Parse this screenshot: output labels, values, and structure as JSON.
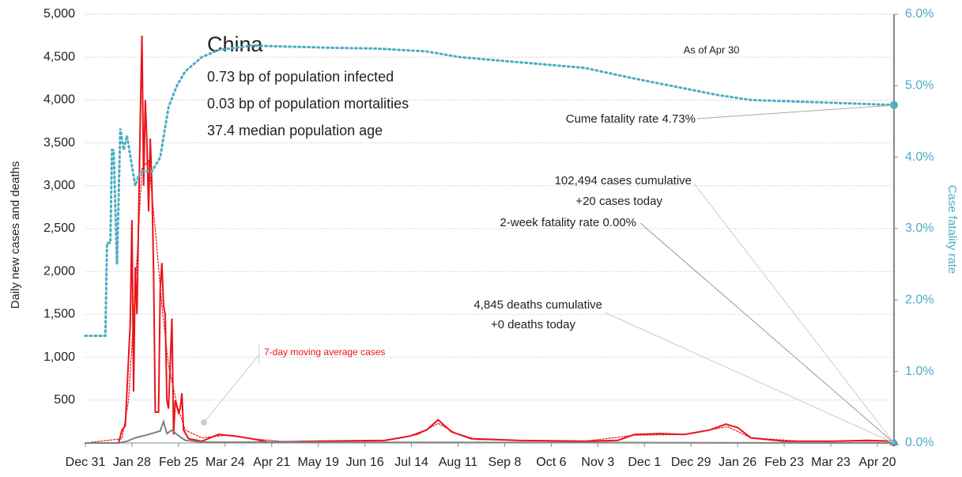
{
  "chart_data": {
    "type": "line",
    "title": "China",
    "subtitle": [
      "0.73 bp of population infected",
      "0.03 bp of population mortalities",
      "37.4 median population age"
    ],
    "y_label": "Daily new cases and deaths",
    "y2_label": "Case fatality rate",
    "annotations": {
      "as_of": "As of Apr 30",
      "cume": "Cume fatality rate 4.73%",
      "cases": [
        "102,494 cases cumulative",
        "+20 cases today"
      ],
      "twoweek": "2-week fatality rate 0.00%",
      "deaths": [
        "4,845 deaths cumulative",
        "+0 deaths today"
      ]
    },
    "xlim": [
      0,
      486
    ],
    "xticks": [
      {
        "value": 0,
        "label": "Dec 31"
      },
      {
        "value": 28,
        "label": "Jan 28"
      },
      {
        "value": 56,
        "label": "Feb 25"
      },
      {
        "value": 84,
        "label": "Mar 24"
      },
      {
        "value": 112,
        "label": "Apr 21"
      },
      {
        "value": 140,
        "label": "May 19"
      },
      {
        "value": 168,
        "label": "Jun 16"
      },
      {
        "value": 196,
        "label": "Jul 14"
      },
      {
        "value": 224,
        "label": "Aug 11"
      },
      {
        "value": 252,
        "label": "Sep 8"
      },
      {
        "value": 280,
        "label": "Oct 6"
      },
      {
        "value": 308,
        "label": "Nov 3"
      },
      {
        "value": 336,
        "label": "Dec 1"
      },
      {
        "value": 364,
        "label": "Dec 29"
      },
      {
        "value": 392,
        "label": "Jan 26"
      },
      {
        "value": 420,
        "label": "Feb 23"
      },
      {
        "value": 448,
        "label": "Mar 23"
      },
      {
        "value": 476,
        "label": "Apr 20"
      }
    ],
    "ylim": [
      0,
      5000
    ],
    "yticks": [
      500,
      {
        "value": 1000,
        "label": "1,000"
      },
      {
        "value": 1500,
        "label": "1,500"
      },
      {
        "value": 2000,
        "label": "2,000"
      },
      {
        "value": 2500,
        "label": "2,500"
      },
      {
        "value": 3000,
        "label": "3,000"
      },
      {
        "value": 3500,
        "label": "3,500"
      },
      {
        "value": 4000,
        "label": "4,000"
      },
      {
        "value": 4500,
        "label": "4,500"
      },
      {
        "value": 5000,
        "label": "5,000"
      }
    ],
    "y2lim": [
      0,
      6
    ],
    "y2ticks": [
      {
        "value": 0,
        "label": "0.0%"
      },
      {
        "value": 1,
        "label": "1.0%"
      },
      {
        "value": 2,
        "label": "2.0%"
      },
      {
        "value": 3,
        "label": "3.0%"
      },
      {
        "value": 4,
        "label": "4.0%"
      },
      {
        "value": 5,
        "label": "5.0%"
      },
      {
        "value": 6,
        "label": "6.0%"
      }
    ],
    "grid": true,
    "series": [
      {
        "color": "#e8141a",
        "style": "solid",
        "x": [
          0,
          20,
          22,
          24,
          26,
          27,
          28,
          29,
          30,
          31,
          33,
          34,
          35,
          36,
          37,
          38,
          39,
          40,
          41,
          42,
          44,
          45,
          46,
          47,
          48,
          49,
          50,
          52,
          53,
          54,
          56,
          57,
          58,
          59,
          62,
          70,
          80,
          90,
          100,
          110,
          140,
          180,
          195,
          205,
          212,
          220,
          232,
          260,
          300,
          320,
          330,
          345,
          360,
          375,
          385,
          392,
          400,
          420,
          450,
          470,
          486
        ],
        "values": [
          0,
          0,
          150,
          200,
          1000,
          1400,
          2600,
          600,
          2050,
          1500,
          3800,
          4750,
          3000,
          4000,
          3500,
          2700,
          3550,
          3000,
          2000,
          360,
          360,
          1800,
          2100,
          1600,
          1500,
          500,
          400,
          1450,
          100,
          500,
          350,
          400,
          580,
          150,
          50,
          20,
          100,
          80,
          50,
          10,
          20,
          30,
          80,
          150,
          270,
          130,
          50,
          30,
          20,
          30,
          100,
          110,
          100,
          150,
          220,
          180,
          60,
          20,
          20,
          30,
          20
        ]
      },
      {
        "name": "7-day moving average cases",
        "color": "#e8141a",
        "style": "dotted",
        "x": [
          0,
          22,
          26,
          30,
          34,
          38,
          42,
          46,
          50,
          55,
          60,
          70,
          85,
          100,
          120,
          180,
          200,
          212,
          222,
          235,
          300,
          330,
          360,
          386,
          400,
          430,
          486
        ],
        "values": [
          0,
          50,
          500,
          1800,
          3200,
          3300,
          2500,
          1600,
          900,
          450,
          150,
          60,
          90,
          50,
          15,
          30,
          100,
          230,
          120,
          40,
          20,
          90,
          100,
          190,
          60,
          20,
          20
        ]
      },
      {
        "color": "#808080",
        "style": "solid",
        "x": [
          0,
          20,
          25,
          30,
          38,
          45,
          47,
          49,
          52,
          55,
          60,
          70,
          486
        ],
        "values": [
          0,
          0,
          20,
          60,
          100,
          140,
          250,
          110,
          150,
          100,
          30,
          10,
          0
        ]
      },
      {
        "color": "#4aaec4",
        "style": "dotted",
        "axis": "y2",
        "x": [
          0,
          12,
          13,
          15,
          16,
          17,
          19,
          21,
          23,
          25,
          30,
          33,
          40,
          45,
          50,
          55,
          60,
          70,
          80,
          100,
          150,
          175,
          205,
          225,
          300,
          330,
          380,
          400,
          450,
          486
        ],
        "values": [
          1.5,
          1.5,
          2.8,
          2.8,
          4.1,
          4.1,
          2.5,
          4.4,
          4.1,
          4.3,
          3.6,
          3.8,
          3.8,
          4.0,
          4.7,
          5.0,
          5.2,
          5.4,
          5.5,
          5.56,
          5.53,
          5.52,
          5.48,
          5.4,
          5.25,
          5.1,
          4.87,
          4.8,
          4.76,
          4.73
        ]
      }
    ]
  }
}
